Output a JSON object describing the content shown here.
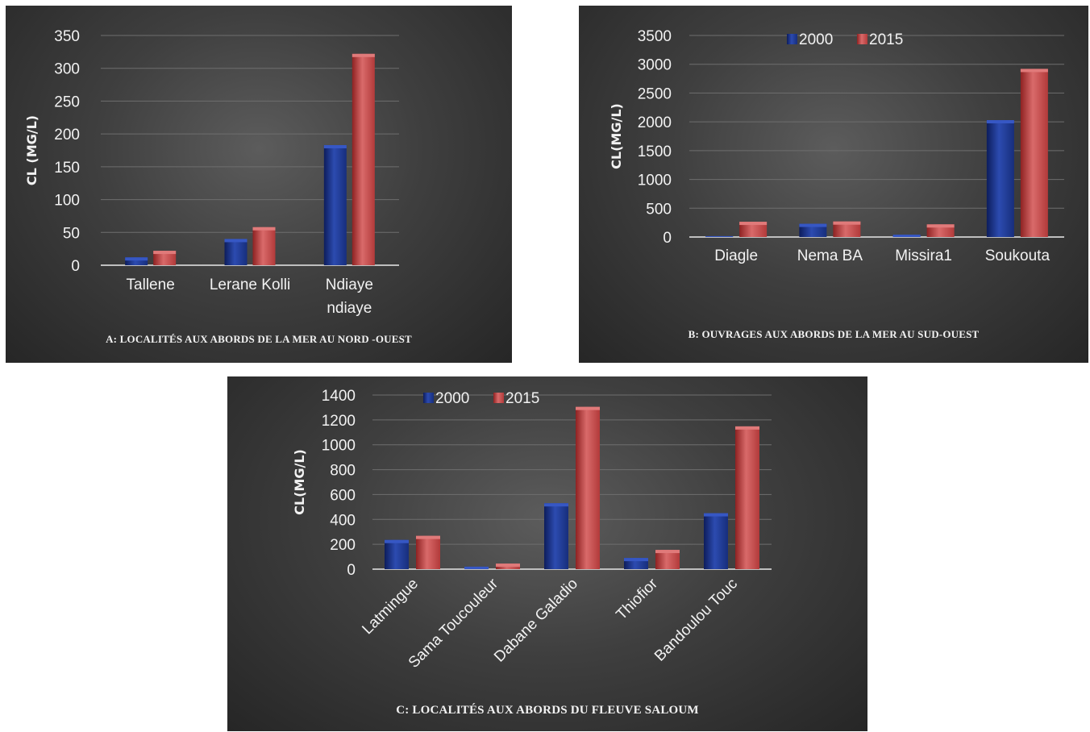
{
  "colors": {
    "s2000": "#1f3a93",
    "s2015": "#c0392b"
  },
  "chart_data": [
    {
      "type": "bar",
      "caption": "A: LOCALITÉS AUX ABORDS DE LA MER AU NORD -OUEST",
      "ylabel": "CL (MG/L)",
      "categories": [
        "Tallene",
        "Lerane Kolli",
        "Ndiaye ndiaye"
      ],
      "ylim": [
        0,
        350
      ],
      "yticks": [
        0,
        50,
        100,
        150,
        200,
        250,
        300,
        350
      ],
      "legend": [],
      "series": [
        {
          "values": [
            12,
            40,
            183
          ]
        },
        {
          "values": [
            22,
            58,
            322
          ]
        }
      ]
    },
    {
      "type": "bar",
      "caption": "B: OUVRAGES AUX ABORDS DE LA MER AU SUD-OUEST",
      "ylabel": "CL(MG/L)",
      "categories": [
        "Diagle",
        "Nema BA",
        "Missira1",
        "Soukouta"
      ],
      "ylim": [
        0,
        3500
      ],
      "yticks": [
        0,
        500,
        1000,
        1500,
        2000,
        2500,
        3000,
        3500
      ],
      "legend": [
        "2000",
        "2015"
      ],
      "series": [
        {
          "name": "2000",
          "values": [
            15,
            230,
            40,
            2030
          ]
        },
        {
          "name": "2015",
          "values": [
            265,
            270,
            220,
            2920
          ]
        }
      ]
    },
    {
      "type": "bar",
      "caption": "C: LOCALITÉS AUX ABORDS DU FLEUVE SALOUM",
      "ylabel": "CL(MG/L)",
      "categories": [
        "Latmingue",
        "Sama Toucouleur",
        "Dabane Galadio",
        "Thiofior",
        "Bandoulou Touc"
      ],
      "ylim": [
        0,
        1400
      ],
      "yticks": [
        0,
        200,
        400,
        600,
        800,
        1000,
        1200,
        1400
      ],
      "legend": [
        "2000",
        "2015"
      ],
      "series": [
        {
          "name": "2000",
          "values": [
            235,
            20,
            530,
            90,
            450
          ]
        },
        {
          "name": "2015",
          "values": [
            268,
            45,
            1305,
            155,
            1148
          ]
        }
      ]
    }
  ]
}
